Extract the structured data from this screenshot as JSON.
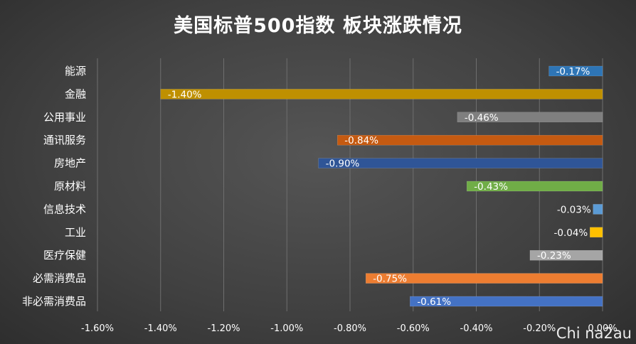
{
  "chart_data": {
    "type": "bar",
    "orientation": "horizontal",
    "title": "美国标普500指数 板块涨跌情况",
    "categories": [
      "能源",
      "金融",
      "公用事业",
      "通讯服务",
      "房地产",
      "原材料",
      "信息技术",
      "工业",
      "医疗保健",
      "必需消费品",
      "非必需消费品"
    ],
    "values": [
      -0.17,
      -1.4,
      -0.46,
      -0.84,
      -0.9,
      -0.43,
      -0.03,
      -0.04,
      -0.23,
      -0.75,
      -0.61
    ],
    "data_labels": [
      "-0.17%",
      "-1.40%",
      "-0.46%",
      "-0.84%",
      "-0.90%",
      "-0.43%",
      "-0.03%",
      "-0.04%",
      "-0.23%",
      "-0.75%",
      "-0.61%"
    ],
    "colors": [
      "#2e75b6",
      "#bf9000",
      "#7f7f7f",
      "#c55a11",
      "#2f5597",
      "#70ad47",
      "#5b9bd5",
      "#ffc000",
      "#a5a5a5",
      "#ed7d31",
      "#4472c4"
    ],
    "label_colors": [
      "#ffffff",
      "#ffffff",
      "#ffffff",
      "#ffffff",
      "#ffffff",
      "#ffffff",
      "#ffffff",
      "#ffffff",
      "#ffffff",
      "#ffffff",
      "#ffffff"
    ],
    "xlim": [
      -1.6,
      0
    ],
    "x_ticks": [
      -1.6,
      -1.4,
      -1.2,
      -1.0,
      -0.8,
      -0.6,
      -0.4,
      -0.2,
      0
    ],
    "x_tick_labels": [
      "-1.60%",
      "-1.40%",
      "-1.20%",
      "-1.00%",
      "-0.80%",
      "-0.60%",
      "-0.40%",
      "-0.20%",
      "0.00%"
    ],
    "grid": true,
    "legend": "none"
  },
  "watermark": "Chi na2au"
}
